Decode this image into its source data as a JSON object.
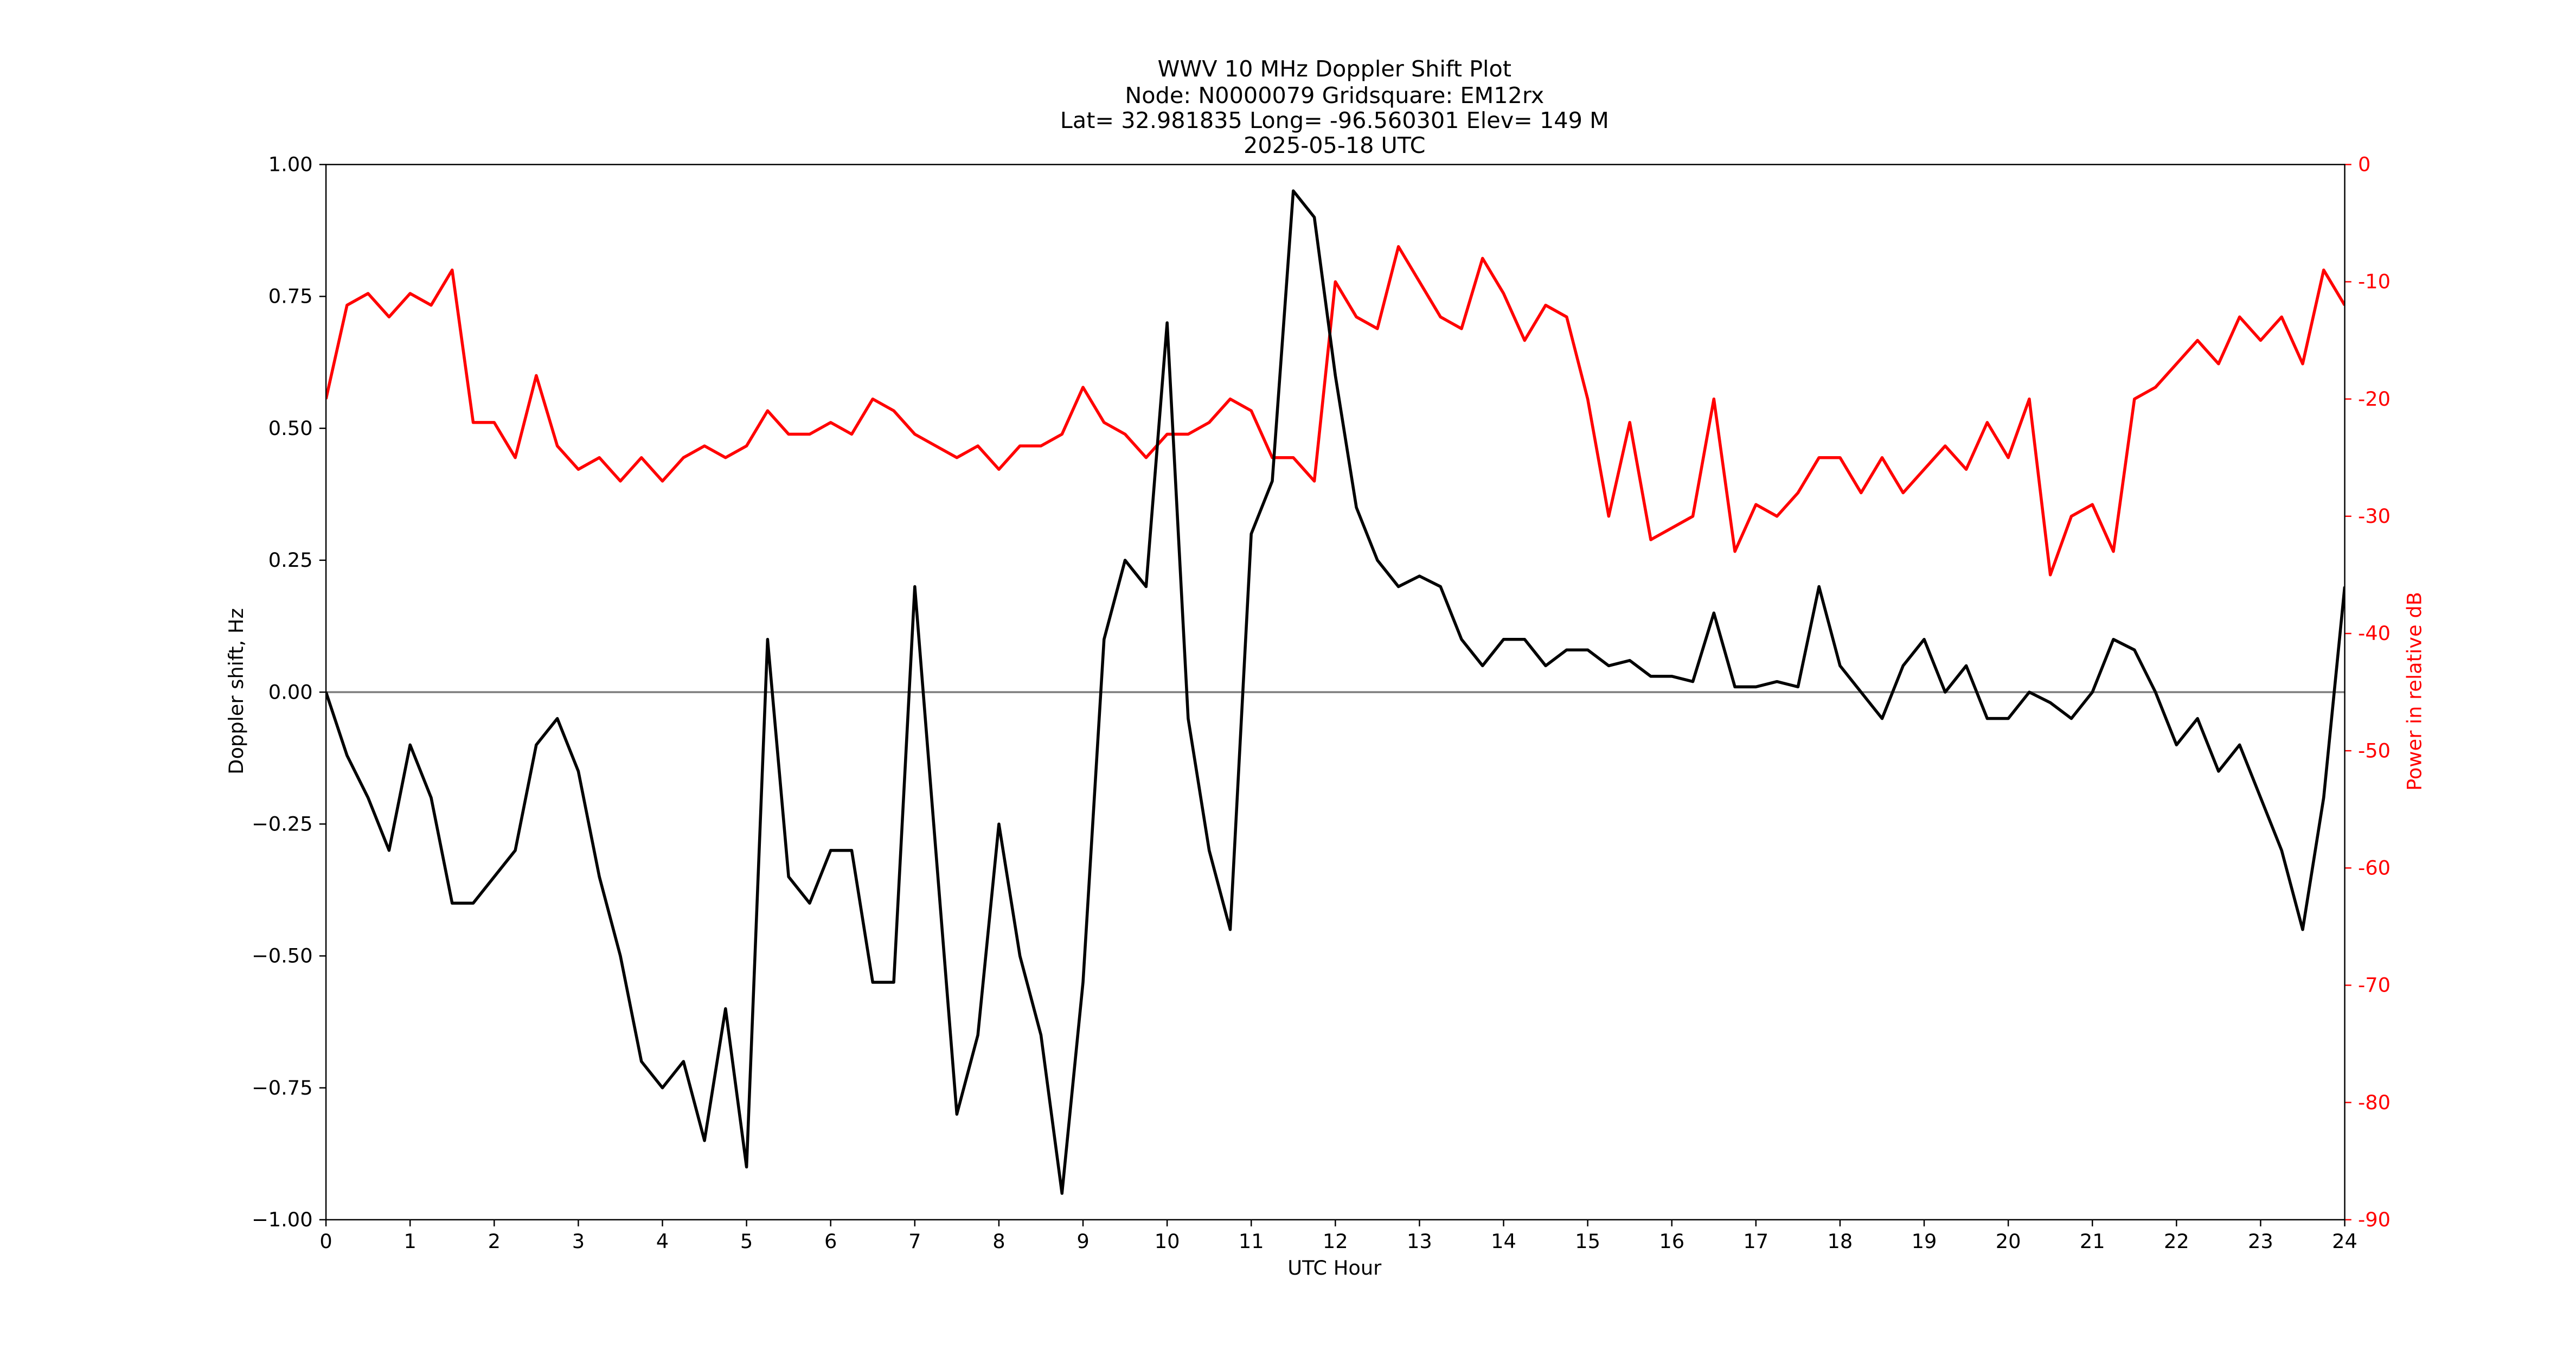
{
  "chart_data": {
    "type": "line",
    "title": [
      "WWV 10 MHz Doppler Shift Plot",
      "Node:  N0000079     Gridsquare:  EM12rx",
      "Lat= 32.981835    Long= -96.560301    Elev= 149 M",
      "2025-05-18  UTC"
    ],
    "x_label": "UTC Hour",
    "y_label": "Doppler shift, Hz",
    "y2_label": "Power in relative dB",
    "y2_color": "#ff0000",
    "reference_line": 0,
    "reference_color": "#808080",
    "x": [
      0,
      0.25,
      0.5,
      0.75,
      1,
      1.25,
      1.5,
      1.75,
      2,
      2.25,
      2.5,
      2.75,
      3,
      3.25,
      3.5,
      3.75,
      4,
      4.25,
      4.5,
      4.75,
      5,
      5.25,
      5.5,
      5.75,
      6,
      6.25,
      6.5,
      6.75,
      7,
      7.25,
      7.5,
      7.75,
      8,
      8.25,
      8.5,
      8.75,
      9,
      9.25,
      9.5,
      9.75,
      10,
      10.25,
      10.5,
      10.75,
      11,
      11.25,
      11.5,
      11.75,
      12,
      12.25,
      12.5,
      12.75,
      13,
      13.25,
      13.5,
      13.75,
      14,
      14.25,
      14.5,
      14.75,
      15,
      15.25,
      15.5,
      15.75,
      16,
      16.25,
      16.5,
      16.75,
      17,
      17.25,
      17.5,
      17.75,
      18,
      18.25,
      18.5,
      18.75,
      19,
      19.25,
      19.5,
      19.75,
      20,
      20.25,
      20.5,
      20.75,
      21,
      21.25,
      21.5,
      21.75,
      22,
      22.25,
      22.5,
      22.75,
      23,
      23.25,
      23.5,
      23.75,
      24
    ],
    "series": [
      {
        "name": "Doppler shift",
        "color": "#000000",
        "axis": "y",
        "values": [
          0,
          -0.12,
          -0.2,
          -0.3,
          -0.1,
          -0.2,
          -0.4,
          -0.4,
          -0.35,
          -0.3,
          -0.1,
          -0.05,
          -0.15,
          -0.35,
          -0.5,
          -0.7,
          -0.75,
          -0.7,
          -0.85,
          -0.6,
          -0.9,
          0.1,
          -0.35,
          -0.4,
          -0.3,
          -0.3,
          -0.55,
          -0.55,
          0.2,
          -0.3,
          -0.8,
          -0.65,
          -0.25,
          -0.5,
          -0.65,
          -0.95,
          -0.55,
          0.1,
          0.25,
          0.2,
          0.7,
          -0.05,
          -0.3,
          -0.45,
          0.3,
          0.4,
          0.95,
          0.9,
          0.6,
          0.35,
          0.25,
          0.2,
          0.22,
          0.2,
          0.1,
          0.05,
          0.1,
          0.1,
          0.05,
          0.08,
          0.08,
          0.05,
          0.06,
          0.03,
          0.03,
          0.02,
          0.15,
          0.01,
          0.01,
          0.02,
          0.01,
          0.2,
          0.05,
          0,
          -0.05,
          0.05,
          0.1,
          0,
          0.05,
          -0.05,
          -0.05,
          0,
          -0.02,
          -0.05,
          0,
          0.1,
          0.08,
          0,
          -0.1,
          -0.05,
          -0.15,
          -0.1,
          -0.2,
          -0.3,
          -0.45,
          -0.2,
          0.2
        ]
      },
      {
        "name": "Power",
        "color": "#ff0000",
        "axis": "y2",
        "values": [
          -20,
          -12,
          -11,
          -13,
          -11,
          -12,
          -9,
          -22,
          -22,
          -25,
          -18,
          -24,
          -26,
          -25,
          -27,
          -25,
          -27,
          -25,
          -24,
          -25,
          -24,
          -21,
          -23,
          -23,
          -22,
          -23,
          -20,
          -21,
          -23,
          -24,
          -25,
          -24,
          -26,
          -24,
          -24,
          -23,
          -19,
          -22,
          -23,
          -25,
          -23,
          -23,
          -22,
          -20,
          -21,
          -25,
          -25,
          -27,
          -10,
          -13,
          -14,
          -7,
          -10,
          -13,
          -14,
          -8,
          -11,
          -15,
          -12,
          -13,
          -20,
          -30,
          -22,
          -32,
          -31,
          -30,
          -20,
          -33,
          -29,
          -30,
          -28,
          -25,
          -25,
          -28,
          -25,
          -28,
          -26,
          -24,
          -26,
          -22,
          -25,
          -20,
          -35,
          -30,
          -29,
          -33,
          -20,
          -19,
          -17,
          -15,
          -17,
          -13,
          -15,
          -13,
          -17,
          -9,
          -12
        ]
      }
    ],
    "xlim": [
      0,
      24
    ],
    "xticks": [
      0,
      1,
      2,
      3,
      4,
      5,
      6,
      7,
      8,
      9,
      10,
      11,
      12,
      13,
      14,
      15,
      16,
      17,
      18,
      19,
      20,
      21,
      22,
      23,
      24
    ],
    "ylim": [
      -1,
      1
    ],
    "yticks": [
      {
        "value": -1,
        "label": "−1.00"
      },
      {
        "value": -0.75,
        "label": "−0.75"
      },
      {
        "value": -0.5,
        "label": "−0.50"
      },
      {
        "value": -0.25,
        "label": "−0.25"
      },
      {
        "value": 0,
        "label": "0.00"
      },
      {
        "value": 0.25,
        "label": "0.25"
      },
      {
        "value": 0.5,
        "label": "0.50"
      },
      {
        "value": 0.75,
        "label": "0.75"
      },
      {
        "value": 1,
        "label": "1.00"
      }
    ],
    "y2lim": [
      -90,
      0
    ],
    "y2ticks": [
      -90,
      -80,
      -70,
      -60,
      -50,
      -40,
      -30,
      -20,
      -10,
      0
    ]
  }
}
